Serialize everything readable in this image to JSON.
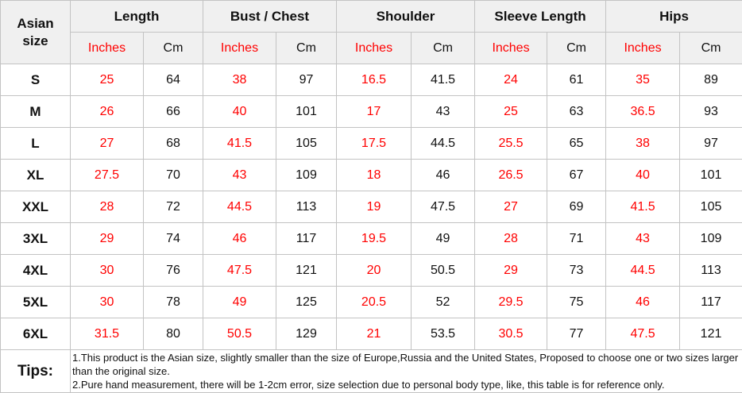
{
  "colors": {
    "header_bg": "#f0f0f0",
    "row_bg": "#ffffff",
    "red": "#ff0000",
    "text": "#111111",
    "border": "#c3c3c3"
  },
  "table": {
    "corner_label": "Asian size",
    "groups": [
      {
        "key": "length",
        "label": "Length"
      },
      {
        "key": "bust-chest",
        "label": "Bust / Chest"
      },
      {
        "key": "shoulder",
        "label": "Shoulder"
      },
      {
        "key": "sleeve-length",
        "label": "Sleeve Length"
      },
      {
        "key": "hips",
        "label": "Hips"
      }
    ],
    "unit_labels": {
      "inches": "Inches",
      "cm": "Cm"
    },
    "tips_label": "Tips:"
  },
  "chart_data": {
    "type": "table",
    "title": "Asian size chart",
    "column_groups": [
      "Length",
      "Bust / Chest",
      "Shoulder",
      "Sleeve Length",
      "Hips"
    ],
    "units_per_group": [
      "Inches",
      "Cm"
    ],
    "columns": [
      "Asian size",
      "Length (Inches)",
      "Length (Cm)",
      "Bust / Chest (Inches)",
      "Bust / Chest (Cm)",
      "Shoulder (Inches)",
      "Shoulder (Cm)",
      "Sleeve Length (Inches)",
      "Sleeve Length (Cm)",
      "Hips (Inches)",
      "Hips (Cm)"
    ],
    "rows": [
      [
        "S",
        25,
        64,
        38,
        97,
        16.5,
        41.5,
        24,
        61,
        35,
        89
      ],
      [
        "M",
        26,
        66,
        40,
        101,
        17,
        43,
        25,
        63,
        36.5,
        93
      ],
      [
        "L",
        27,
        68,
        41.5,
        105,
        17.5,
        44.5,
        25.5,
        65,
        38,
        97
      ],
      [
        "XL",
        27.5,
        70,
        43,
        109,
        18,
        46,
        26.5,
        67,
        40,
        101
      ],
      [
        "XXL",
        28,
        72,
        44.5,
        113,
        19,
        47.5,
        27,
        69,
        41.5,
        105
      ],
      [
        "3XL",
        29,
        74,
        46,
        117,
        19.5,
        49,
        28,
        71,
        43,
        109
      ],
      [
        "4XL",
        30,
        76,
        47.5,
        121,
        20,
        50.5,
        29,
        73,
        44.5,
        113
      ],
      [
        "5XL",
        30,
        78,
        49,
        125,
        20.5,
        52,
        29.5,
        75,
        46,
        117
      ],
      [
        "6XL",
        31.5,
        80,
        50.5,
        129,
        21,
        53.5,
        30.5,
        77,
        47.5,
        121
      ]
    ],
    "notes": [
      "1.This product is the Asian size, slightly smaller than the size of Europe,Russia and the United States, Proposed to choose one or two sizes larger than the original size.",
      "2.Pure hand measurement, there will be 1-2cm error, size selection due to personal body type, like, this table is for reference only."
    ]
  }
}
